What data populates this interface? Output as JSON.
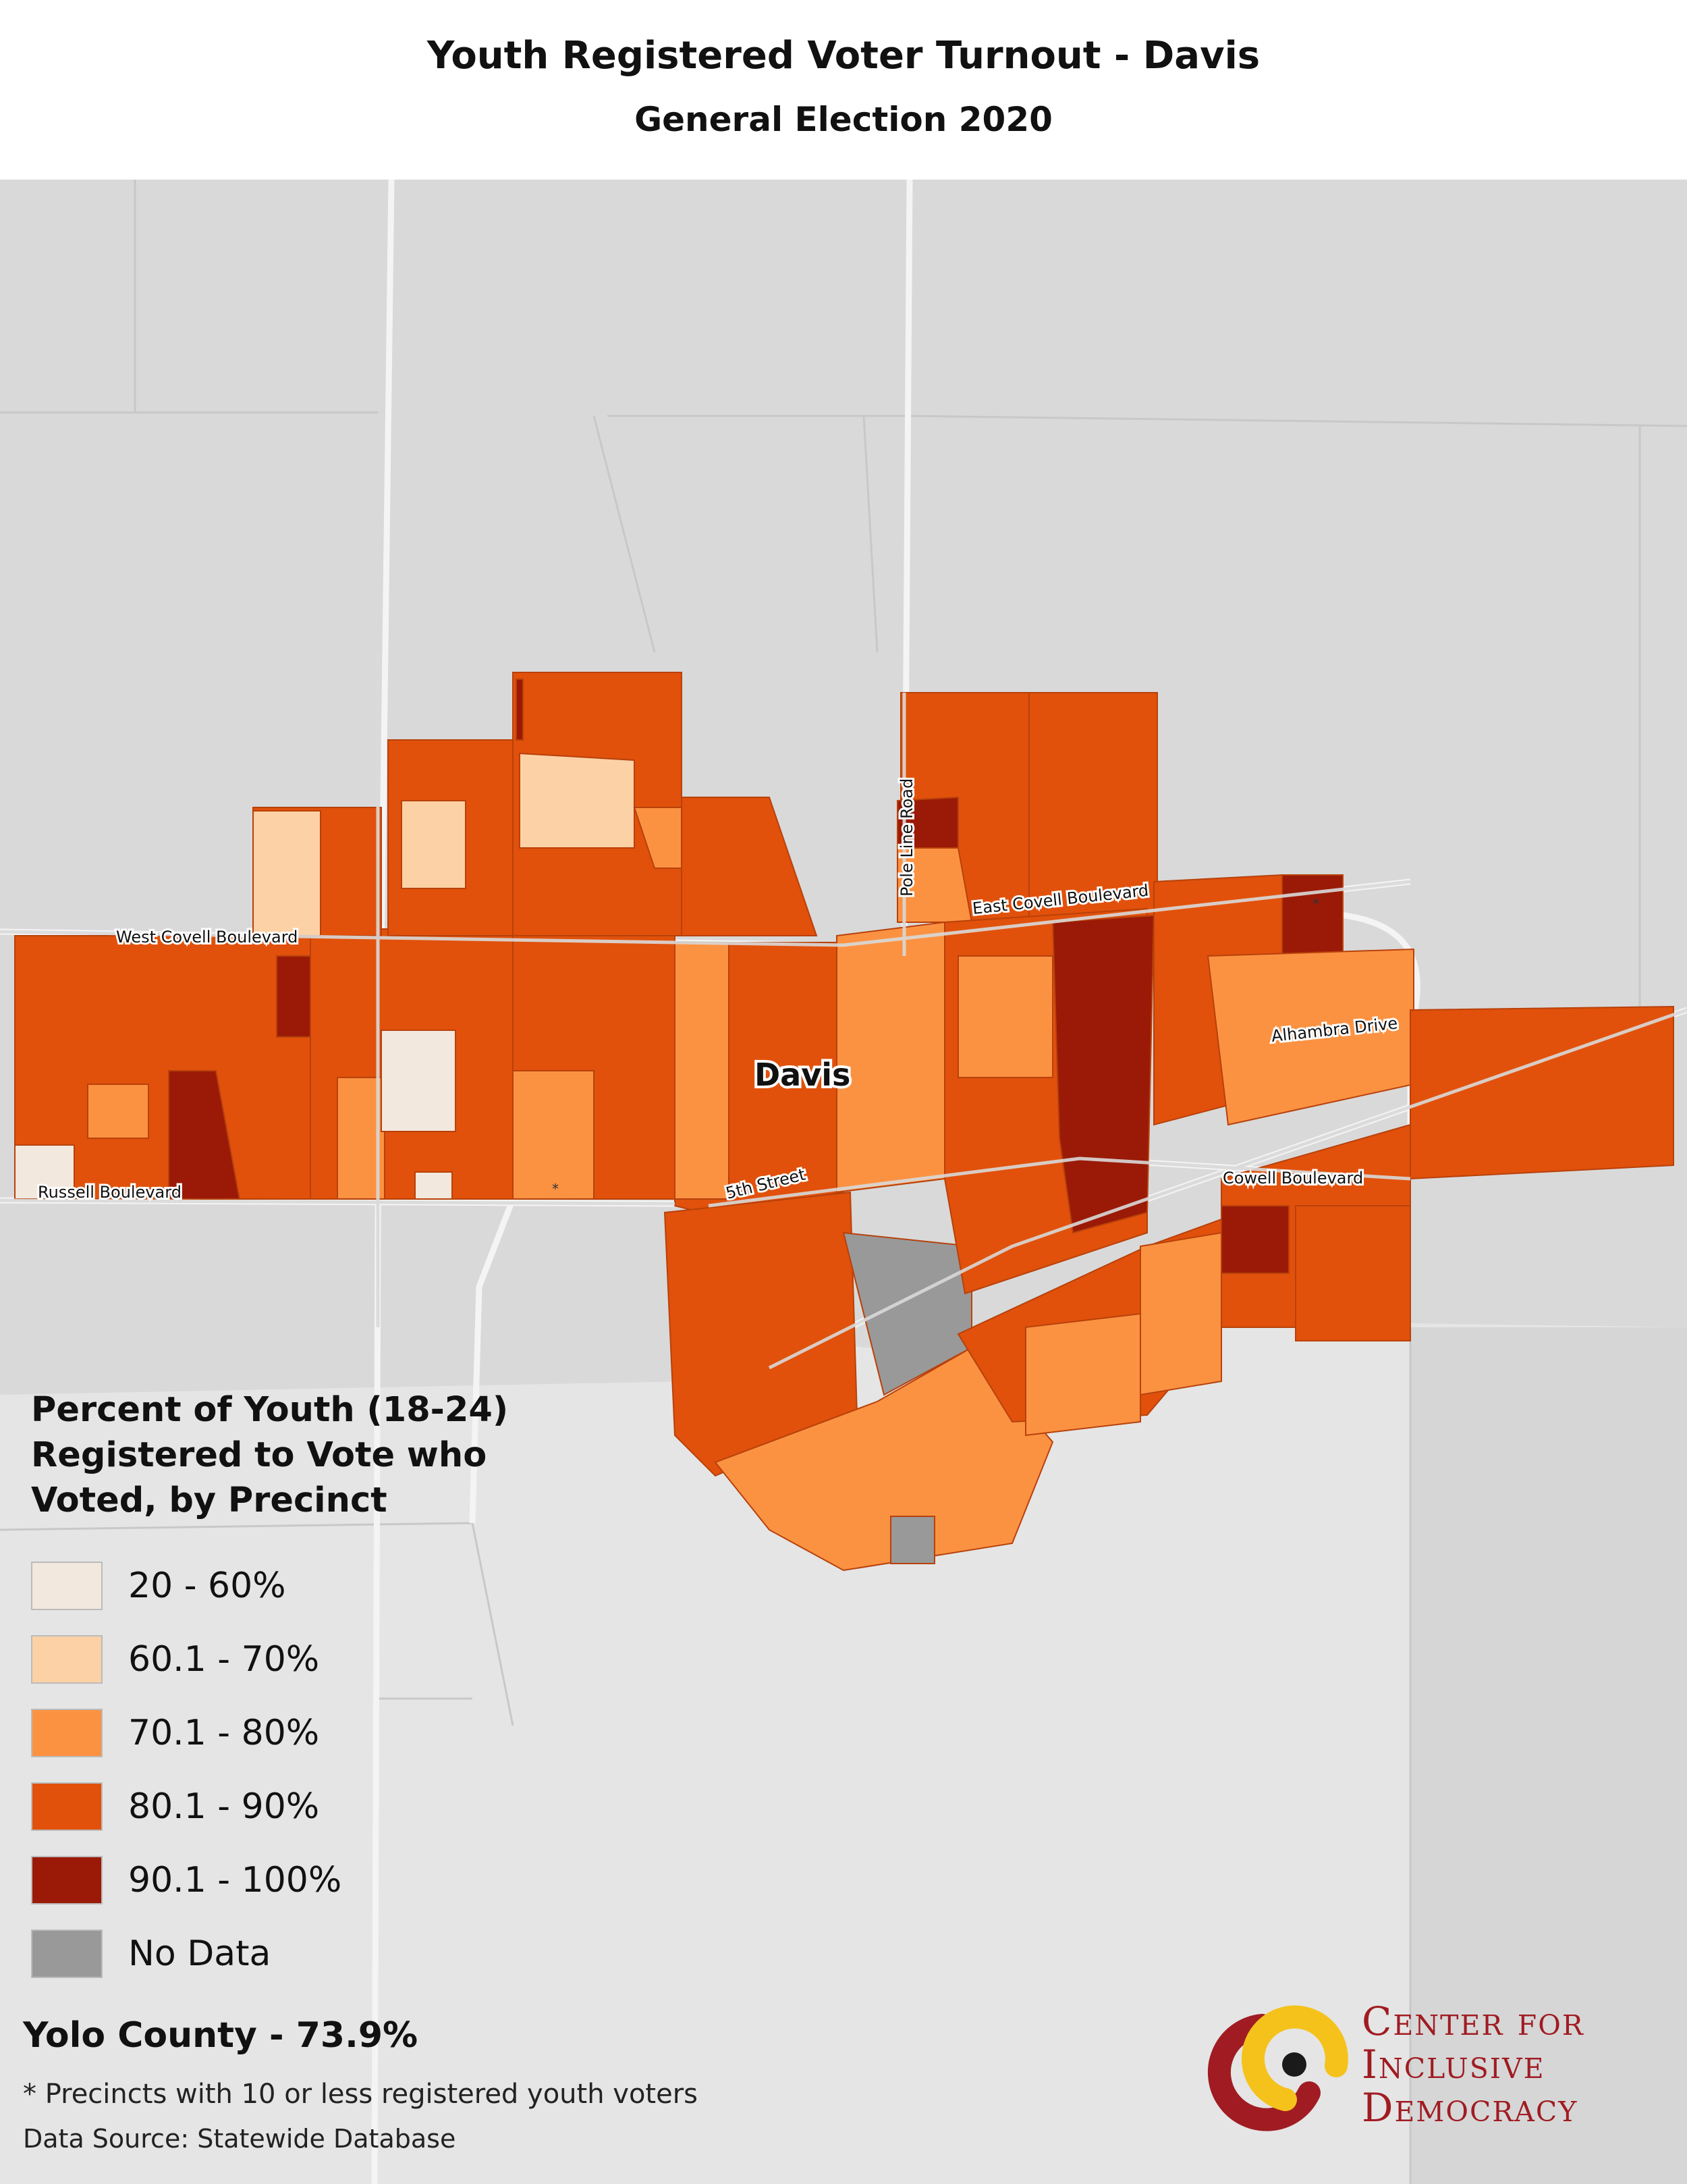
{
  "title": "Youth Registered Voter Turnout - Davis",
  "subtitle": "General Election 2020",
  "map": {
    "city_label": "Davis",
    "roads": {
      "pole_line": "Pole Line Road",
      "east_covell": "East Covell Boulevard",
      "west_covell": "West Covell Boulevard",
      "alhambra": "Alhambra Drive",
      "russell": "Russell Boulevard",
      "fifth": "5th Street",
      "cowell": "Cowell Boulevard"
    },
    "colors": {
      "background": "#d9d9d9",
      "lower_ground": "#e5e5e5",
      "road": "#f2f2f2",
      "c20_60": "#f2e8de",
      "c60_70": "#fcd1a5",
      "c70_80": "#fb9242",
      "c80_90": "#e1510b",
      "c90_100": "#9a1a07",
      "no_data": "#999999"
    }
  },
  "legend": {
    "title_lines": [
      "Percent of Youth (18-24)",
      "Registered to Vote who",
      "Voted, by Precinct"
    ],
    "items": [
      {
        "label": "20 - 60%",
        "color": "#f2e8de"
      },
      {
        "label": "60.1 - 70%",
        "color": "#fcd1a5"
      },
      {
        "label": "70.1 - 80%",
        "color": "#fb9242"
      },
      {
        "label": "80.1 - 90%",
        "color": "#e1510b"
      },
      {
        "label": "90.1 - 100%",
        "color": "#9a1a07"
      },
      {
        "label": "No Data",
        "color": "#999999"
      }
    ]
  },
  "county_summary": "Yolo County - 73.9%",
  "footnote": "* Precincts with 10 or less registered youth voters",
  "source": "Data Source: Statewide Database",
  "logo": {
    "lines": [
      "Center for",
      "Inclusive",
      "Democracy"
    ],
    "colors": {
      "red": "#a01c22",
      "yellow": "#f5c21b",
      "black": "#1a1a1a"
    }
  }
}
